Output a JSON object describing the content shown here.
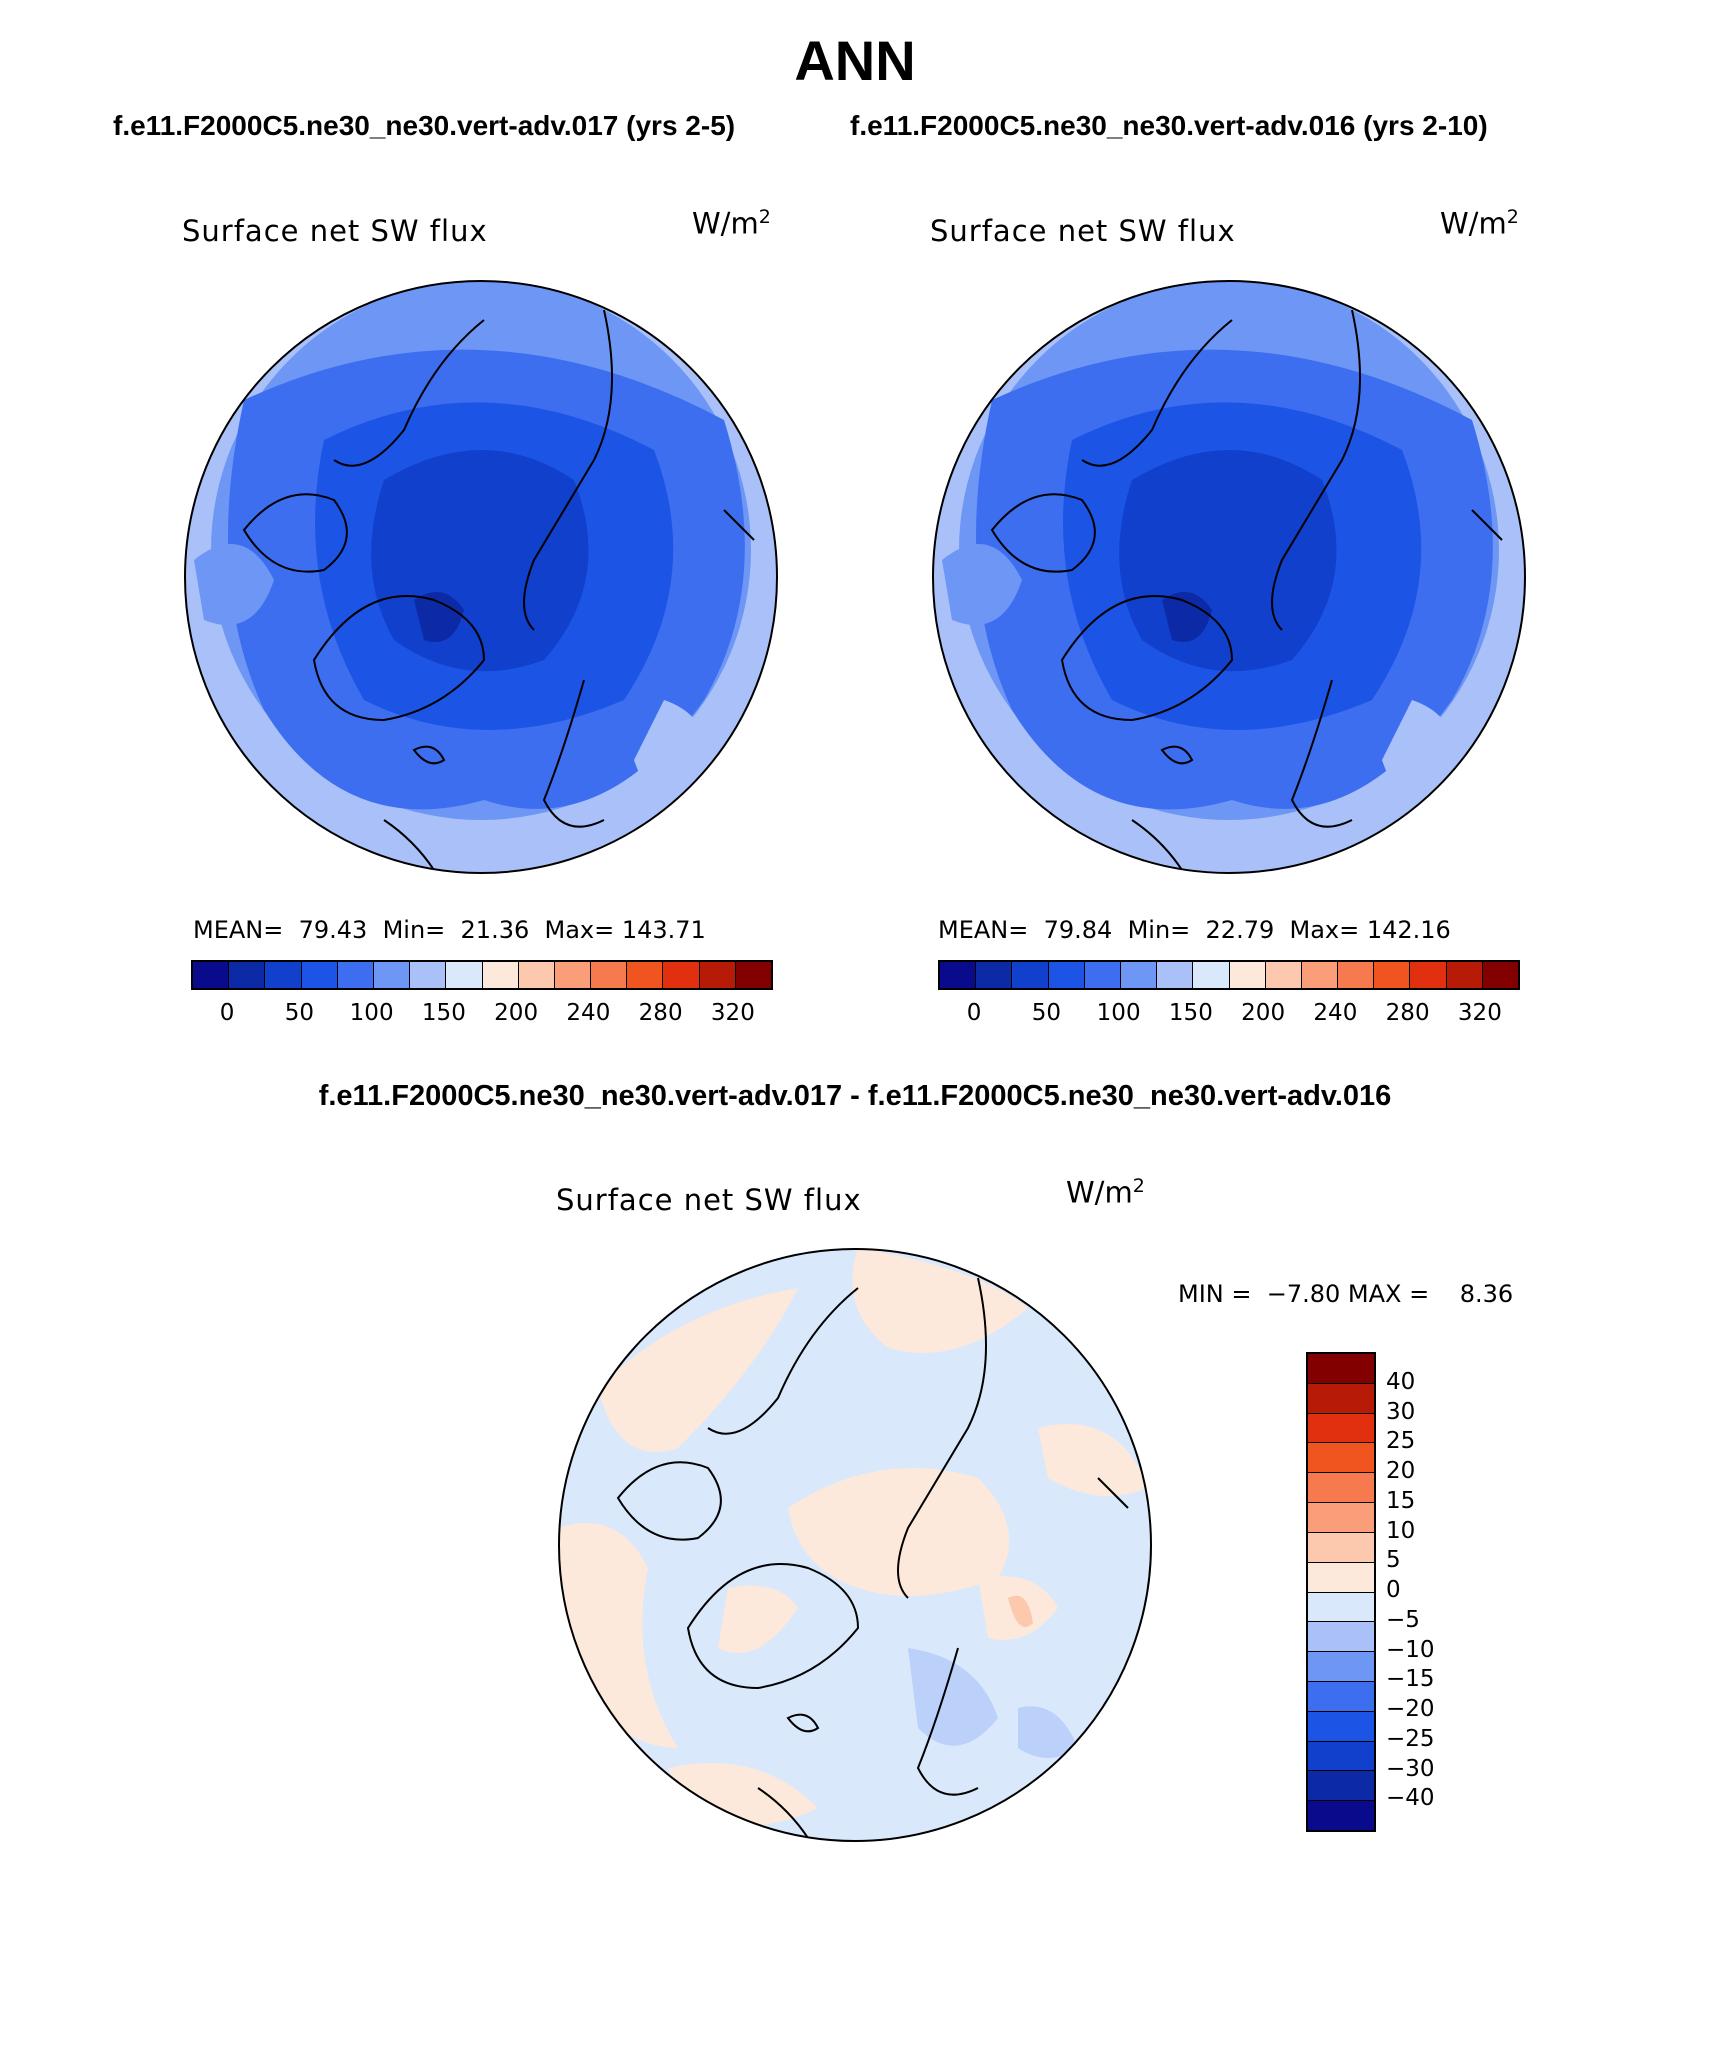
{
  "header": {
    "season": "ANN",
    "case1": "f.e11.F2000C5.ne30_ne30.vert-adv.017 (yrs 2-5)",
    "case2": "f.e11.F2000C5.ne30_ne30.vert-adv.016 (yrs 2-10)",
    "diff": "f.e11.F2000C5.ne30_ne30.vert-adv.017 - f.e11.F2000C5.ne30_ne30.vert-adv.016"
  },
  "panels": [
    {
      "variable": "Surface net SW flux",
      "units_base": "W/m",
      "units_exp": "2",
      "stats": "MEAN=  79.43  Min=  21.36  Max= 143.71"
    },
    {
      "variable": "Surface net SW flux",
      "units_base": "W/m",
      "units_exp": "2",
      "stats": "MEAN=  79.84  Min=  22.79  Max= 142.16"
    }
  ],
  "diff_panel": {
    "variable": "Surface net SW flux",
    "units_base": "W/m",
    "units_exp": "2",
    "stats": "MIN =  −7.80 MAX =    8.36"
  },
  "colorbar_abs": {
    "colors": [
      "#0a0a8c",
      "#0d2aa6",
      "#1040cc",
      "#1c55e6",
      "#3d6ef0",
      "#6e96f5",
      "#a9c1f8",
      "#d9e8fb",
      "#fde9dc",
      "#fcc8ae",
      "#fa9e7a",
      "#f67a4e",
      "#f0551f",
      "#e03010",
      "#b81a08",
      "#820000"
    ],
    "ticks": [
      "0",
      "50",
      "100",
      "150",
      "200",
      "240",
      "280",
      "320"
    ]
  },
  "colorbar_diff": {
    "colors": [
      "#820000",
      "#b81a08",
      "#e03010",
      "#f0551f",
      "#f67a4e",
      "#fa9e7a",
      "#fcc8ae",
      "#fde9dc",
      "#d9e8fb",
      "#a9c1f8",
      "#6e96f5",
      "#3d6ef0",
      "#1c55e6",
      "#1040cc",
      "#0d2aa6",
      "#0a0a8c"
    ],
    "ticks": [
      "40",
      "30",
      "25",
      "20",
      "15",
      "10",
      "5",
      "0",
      "−5",
      "−10",
      "−15",
      "−20",
      "−25",
      "−30",
      "−40"
    ]
  }
}
